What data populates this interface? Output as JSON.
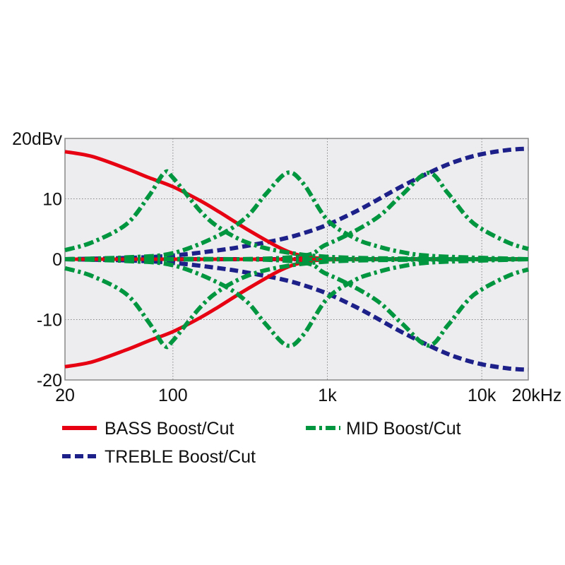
{
  "chart_data": {
    "type": "line",
    "x_scale": "log",
    "xlim": [
      20,
      20000
    ],
    "ylim": [
      -20,
      20
    ],
    "grid": true,
    "x_ticks": [
      {
        "value": 20,
        "label": "20"
      },
      {
        "value": 100,
        "label": "100"
      },
      {
        "value": 1000,
        "label": "1k"
      },
      {
        "value": 10000,
        "label": "10k"
      },
      {
        "value": 20000,
        "label": "20kHz"
      }
    ],
    "y_ticks": [
      {
        "value": 20,
        "label": "20dBv"
      },
      {
        "value": 10,
        "label": "10"
      },
      {
        "value": 0,
        "label": "0"
      },
      {
        "value": -10,
        "label": "-10"
      },
      {
        "value": -20,
        "label": "-20"
      }
    ],
    "legend_placement": "bottom",
    "legend": [
      {
        "name": "BASS Boost/Cut",
        "color": "#e60012",
        "style": "solid"
      },
      {
        "name": "MID Boost/Cut",
        "color": "#00963f",
        "style": "dashdot"
      },
      {
        "name": "TREBLE Boost/Cut",
        "color": "#1d2088",
        "style": "dashed"
      }
    ],
    "series": [
      {
        "group": "TREBLE",
        "color": "#1d2088",
        "style": "dashed",
        "points": [
          [
            20,
            0
          ],
          [
            50,
            0.2
          ],
          [
            100,
            0.6
          ],
          [
            200,
            1.5
          ],
          [
            300,
            2.2
          ],
          [
            500,
            3.3
          ],
          [
            700,
            4.3
          ],
          [
            1000,
            5.7
          ],
          [
            1500,
            7.8
          ],
          [
            2000,
            9.5
          ],
          [
            3000,
            12
          ],
          [
            5000,
            14.8
          ],
          [
            7000,
            16.3
          ],
          [
            10000,
            17.4
          ],
          [
            15000,
            18.1
          ],
          [
            20000,
            18.3
          ]
        ]
      },
      {
        "group": "TREBLE",
        "color": "#1d2088",
        "style": "dashed",
        "points": [
          [
            20,
            0
          ],
          [
            50,
            -0.2
          ],
          [
            100,
            -0.6
          ],
          [
            200,
            -1.5
          ],
          [
            300,
            -2.2
          ],
          [
            500,
            -3.3
          ],
          [
            700,
            -4.3
          ],
          [
            1000,
            -5.7
          ],
          [
            1500,
            -7.8
          ],
          [
            2000,
            -9.5
          ],
          [
            3000,
            -12
          ],
          [
            5000,
            -14.8
          ],
          [
            7000,
            -16.3
          ],
          [
            10000,
            -17.4
          ],
          [
            15000,
            -18.1
          ],
          [
            20000,
            -18.3
          ]
        ]
      },
      {
        "group": "TREBLE",
        "color": "#1d2088",
        "style": "dashed",
        "points": [
          [
            20,
            0
          ],
          [
            20000,
            0
          ]
        ]
      },
      {
        "group": "BASS",
        "color": "#e60012",
        "style": "solid",
        "points": [
          [
            20,
            17.8
          ],
          [
            30,
            17
          ],
          [
            50,
            15
          ],
          [
            70,
            13.5
          ],
          [
            100,
            12
          ],
          [
            150,
            9.7
          ],
          [
            200,
            7.8
          ],
          [
            300,
            5
          ],
          [
            500,
            1.8
          ],
          [
            700,
            0.5
          ],
          [
            1000,
            0.1
          ],
          [
            2000,
            0
          ],
          [
            20000,
            0
          ]
        ]
      },
      {
        "group": "BASS",
        "color": "#e60012",
        "style": "solid",
        "points": [
          [
            20,
            -17.8
          ],
          [
            30,
            -17
          ],
          [
            50,
            -15
          ],
          [
            70,
            -13.5
          ],
          [
            100,
            -12
          ],
          [
            150,
            -9.7
          ],
          [
            200,
            -7.8
          ],
          [
            300,
            -5
          ],
          [
            500,
            -1.8
          ],
          [
            700,
            -0.5
          ],
          [
            1000,
            -0.1
          ],
          [
            2000,
            0
          ],
          [
            20000,
            0
          ]
        ]
      },
      {
        "group": "BASS",
        "color": "#e60012",
        "style": "solid",
        "points": [
          [
            20,
            0
          ],
          [
            20000,
            0
          ]
        ]
      },
      {
        "group": "MID",
        "color": "#00963f",
        "style": "dashdot",
        "points": [
          [
            20,
            1.5
          ],
          [
            30,
            2.8
          ],
          [
            50,
            5.8
          ],
          [
            70,
            10.5
          ],
          [
            88,
            14.3
          ],
          [
            100,
            13.5
          ],
          [
            150,
            8
          ],
          [
            200,
            5.2
          ],
          [
            300,
            2.8
          ],
          [
            500,
            1.3
          ],
          [
            1000,
            0.4
          ],
          [
            3000,
            0.1
          ],
          [
            20000,
            0
          ]
        ]
      },
      {
        "group": "MID",
        "color": "#00963f",
        "style": "dashdot",
        "points": [
          [
            20,
            -1.5
          ],
          [
            30,
            -2.8
          ],
          [
            50,
            -5.8
          ],
          [
            70,
            -10.5
          ],
          [
            88,
            -14.3
          ],
          [
            100,
            -13.5
          ],
          [
            150,
            -8
          ],
          [
            200,
            -5.2
          ],
          [
            300,
            -2.8
          ],
          [
            500,
            -1.3
          ],
          [
            1000,
            -0.4
          ],
          [
            3000,
            -0.1
          ],
          [
            20000,
            0
          ]
        ]
      },
      {
        "group": "MID",
        "color": "#00963f",
        "style": "dashdot",
        "points": [
          [
            20,
            0
          ],
          [
            50,
            0.3
          ],
          [
            100,
            1
          ],
          [
            200,
            4
          ],
          [
            300,
            7
          ],
          [
            400,
            10.8
          ],
          [
            550,
            14.3
          ],
          [
            700,
            12.5
          ],
          [
            1000,
            6.5
          ],
          [
            1500,
            3.5
          ],
          [
            2000,
            2.3
          ],
          [
            3000,
            1.2
          ],
          [
            5000,
            0.5
          ],
          [
            20000,
            0
          ]
        ]
      },
      {
        "group": "MID",
        "color": "#00963f",
        "style": "dashdot",
        "points": [
          [
            20,
            0
          ],
          [
            50,
            -0.3
          ],
          [
            100,
            -1
          ],
          [
            200,
            -4
          ],
          [
            300,
            -7
          ],
          [
            400,
            -10.8
          ],
          [
            550,
            -14.3
          ],
          [
            700,
            -12.5
          ],
          [
            1000,
            -6.5
          ],
          [
            1500,
            -3.5
          ],
          [
            2000,
            -2.3
          ],
          [
            3000,
            -1.2
          ],
          [
            5000,
            -0.5
          ],
          [
            20000,
            0
          ]
        ]
      },
      {
        "group": "MID",
        "color": "#00963f",
        "style": "dashdot",
        "points": [
          [
            20,
            0
          ],
          [
            500,
            0.2
          ],
          [
            1000,
            2.5
          ],
          [
            2000,
            6.5
          ],
          [
            3000,
            10.5
          ],
          [
            4500,
            14.3
          ],
          [
            6000,
            11
          ],
          [
            8000,
            7
          ],
          [
            10000,
            5
          ],
          [
            15000,
            2.7
          ],
          [
            20000,
            1.7
          ]
        ]
      },
      {
        "group": "MID",
        "color": "#00963f",
        "style": "dashdot",
        "points": [
          [
            20,
            0
          ],
          [
            500,
            -0.2
          ],
          [
            1000,
            -2.5
          ],
          [
            2000,
            -6.5
          ],
          [
            3000,
            -10.5
          ],
          [
            4500,
            -14.3
          ],
          [
            6000,
            -11
          ],
          [
            8000,
            -7
          ],
          [
            10000,
            -5
          ],
          [
            15000,
            -2.7
          ],
          [
            20000,
            -1.7
          ]
        ]
      },
      {
        "group": "MID",
        "color": "#00963f",
        "style": "dashdot",
        "points": [
          [
            20,
            0
          ],
          [
            20000,
            0
          ]
        ]
      }
    ]
  }
}
